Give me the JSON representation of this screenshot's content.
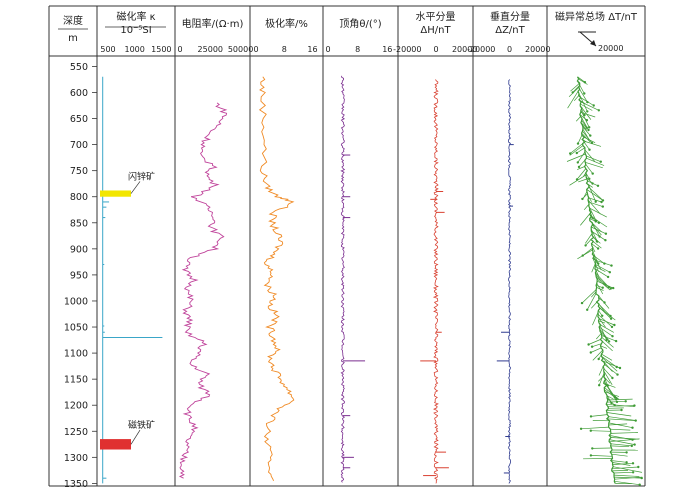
{
  "chart_data": {
    "type": "line",
    "figure_kind": "borehole well-log composite",
    "depth_axis": {
      "label": "深度",
      "unit": "m",
      "range": [
        530,
        1355
      ],
      "ticks": [
        550,
        600,
        650,
        700,
        750,
        800,
        850,
        900,
        950,
        1000,
        1050,
        1100,
        1150,
        1200,
        1250,
        1300,
        1350
      ],
      "orientation": "increasing-downward"
    },
    "tracks": [
      {
        "id": "susceptibility",
        "title": "磁化率 κ",
        "unit_label": "10⁻⁵SI",
        "xlim": [
          350,
          1700
        ],
        "ticks": [
          500,
          1000,
          1500
        ],
        "color": "#3aa6c8",
        "baseline": 400,
        "spikes": [
          {
            "depth": 810,
            "value": 520
          },
          {
            "depth": 820,
            "value": 470
          },
          {
            "depth": 840,
            "value": 450
          },
          {
            "depth": 930,
            "value": 430
          },
          {
            "depth": 1048,
            "value": 430
          },
          {
            "depth": 1060,
            "value": 440
          },
          {
            "depth": 1070,
            "value": 1520
          },
          {
            "depth": 1275,
            "value": 420
          },
          {
            "depth": 1340,
            "value": 470
          }
        ],
        "annotations": [
          {
            "text": "闪锌矿",
            "depth_top": 788,
            "depth_bottom": 800,
            "color": "#f2e600"
          },
          {
            "text": "磁铁矿",
            "depth_top": 1265,
            "depth_bottom": 1285,
            "color": "#e03030"
          }
        ]
      },
      {
        "id": "resistivity",
        "title": "电阻率/(Ω·m)",
        "xlim": [
          0,
          52000
        ],
        "ticks": [
          0,
          25000,
          50000
        ],
        "color": "#c0449b",
        "profile": [
          [
            620,
            30000
          ],
          [
            640,
            38000
          ],
          [
            660,
            32000
          ],
          [
            680,
            24000
          ],
          [
            700,
            20000
          ],
          [
            720,
            15000
          ],
          [
            740,
            28000
          ],
          [
            760,
            22000
          ],
          [
            780,
            30000
          ],
          [
            800,
            12000
          ],
          [
            820,
            22000
          ],
          [
            840,
            30000
          ],
          [
            860,
            26000
          ],
          [
            880,
            35000
          ],
          [
            900,
            28000
          ],
          [
            920,
            8000
          ],
          [
            940,
            3000
          ],
          [
            960,
            12000
          ],
          [
            980,
            6000
          ],
          [
            1000,
            9000
          ],
          [
            1020,
            5000
          ],
          [
            1040,
            8000
          ],
          [
            1060,
            4000
          ],
          [
            1080,
            20000
          ],
          [
            1100,
            15000
          ],
          [
            1120,
            8000
          ],
          [
            1140,
            22000
          ],
          [
            1160,
            15000
          ],
          [
            1180,
            25000
          ],
          [
            1200,
            10000
          ],
          [
            1220,
            6000
          ],
          [
            1240,
            12000
          ],
          [
            1260,
            7000
          ],
          [
            1280,
            5000
          ],
          [
            1300,
            3000
          ],
          [
            1320,
            2000
          ],
          [
            1340,
            3000
          ]
        ]
      },
      {
        "id": "polarizability",
        "title": "极化率/%",
        "xlim": [
          0,
          17
        ],
        "ticks": [
          0,
          8,
          16
        ],
        "color": "#f08a24",
        "profile": [
          [
            570,
            2.0
          ],
          [
            600,
            1.8
          ],
          [
            650,
            2.2
          ],
          [
            700,
            2.5
          ],
          [
            750,
            2.0
          ],
          [
            780,
            3.0
          ],
          [
            800,
            6.0
          ],
          [
            810,
            11.0
          ],
          [
            830,
            5.0
          ],
          [
            850,
            4.5
          ],
          [
            870,
            6.0
          ],
          [
            890,
            7.0
          ],
          [
            910,
            5.0
          ],
          [
            930,
            3.0
          ],
          [
            950,
            5.0
          ],
          [
            970,
            3.0
          ],
          [
            990,
            5.5
          ],
          [
            1010,
            4.0
          ],
          [
            1030,
            6.0
          ],
          [
            1050,
            4.0
          ],
          [
            1070,
            5.0
          ],
          [
            1090,
            6.0
          ],
          [
            1110,
            4.0
          ],
          [
            1130,
            5.0
          ],
          [
            1150,
            7.0
          ],
          [
            1170,
            9.0
          ],
          [
            1190,
            11.0
          ],
          [
            1210,
            6.0
          ],
          [
            1230,
            4.0
          ],
          [
            1260,
            3.0
          ],
          [
            1290,
            3.5
          ],
          [
            1320,
            4.0
          ],
          [
            1345,
            5.0
          ]
        ]
      },
      {
        "id": "inclination",
        "title": "顶角θ/(°)",
        "xlim": [
          0,
          17
        ],
        "ticks": [
          0,
          8,
          16
        ],
        "color": "#7a2d8f",
        "baseline": 4,
        "spikes": [
          {
            "depth": 720,
            "value": 6
          },
          {
            "depth": 800,
            "value": 6
          },
          {
            "depth": 840,
            "value": 6
          },
          {
            "depth": 1115,
            "value": 10
          },
          {
            "depth": 1220,
            "value": 6
          },
          {
            "depth": 1300,
            "value": 7
          },
          {
            "depth": 1320,
            "value": 6
          }
        ]
      },
      {
        "id": "horizontal",
        "title": "水平分量",
        "unit_label": "ΔH/nT",
        "xlim": [
          -23000,
          23000
        ],
        "ticks": [
          -20000,
          0,
          20000
        ],
        "color": "#d94030",
        "baseline": 0,
        "spikes": [
          {
            "depth": 790,
            "value": 5000
          },
          {
            "depth": 805,
            "value": -4000
          },
          {
            "depth": 830,
            "value": 6000
          },
          {
            "depth": 1060,
            "value": 4000
          },
          {
            "depth": 1115,
            "value": -11000
          },
          {
            "depth": 1290,
            "value": 7000
          },
          {
            "depth": 1320,
            "value": 9000
          },
          {
            "depth": 1335,
            "value": -9000
          }
        ]
      },
      {
        "id": "vertical",
        "title": "垂直分量",
        "unit_label": "ΔZ/nT",
        "xlim": [
          -23000,
          23000
        ],
        "ticks": [
          -20000,
          0,
          20000
        ],
        "color": "#2e3a8f",
        "baseline": 0,
        "spikes": [
          {
            "depth": 700,
            "value": 3000
          },
          {
            "depth": 818,
            "value": 2500
          },
          {
            "depth": 1060,
            "value": -6000
          },
          {
            "depth": 1115,
            "value": -9000
          },
          {
            "depth": 1260,
            "value": -3000
          },
          {
            "depth": 1330,
            "value": -4000
          }
        ]
      },
      {
        "id": "total",
        "title": "磁异常总场 ΔT/nT",
        "scale_label": "20000",
        "color": "#3e9b35",
        "render": "vector"
      }
    ]
  }
}
